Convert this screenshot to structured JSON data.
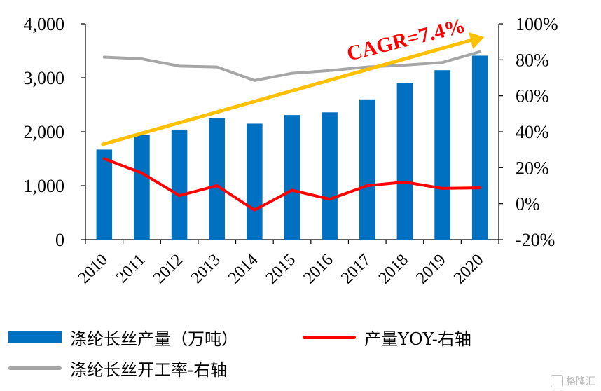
{
  "chart_data": {
    "type": "bar",
    "categories": [
      "2010",
      "2011",
      "2012",
      "2013",
      "2014",
      "2015",
      "2016",
      "2017",
      "2018",
      "2019",
      "2020"
    ],
    "series": [
      {
        "name": "涤纶长丝产量（万吨）",
        "type": "bar",
        "axis": "left",
        "color": "#0070c0",
        "values": [
          1670,
          1940,
          2040,
          2250,
          2150,
          2310,
          2360,
          2600,
          2900,
          3140,
          3410
        ]
      },
      {
        "name": "产量YOY-右轴",
        "type": "line",
        "axis": "right",
        "color": "#ff0000",
        "values": [
          25,
          17,
          4.5,
          10,
          -3.5,
          7.5,
          2.5,
          10,
          12,
          8.5,
          8.8
        ]
      },
      {
        "name": "涤纶长丝开工率-右轴",
        "type": "line",
        "axis": "right",
        "color": "#a6a6a6",
        "values": [
          81.5,
          80.5,
          76.5,
          76,
          68.5,
          72.5,
          74,
          76,
          77,
          78.5,
          84.5
        ]
      }
    ],
    "ylim_left": [
      0,
      4000
    ],
    "yticks_left": [
      "0",
      "1,000",
      "2,000",
      "3,000",
      "4,000"
    ],
    "ylim_right": [
      -20,
      100
    ],
    "yticks_right": [
      "-20%",
      "0%",
      "20%",
      "40%",
      "60%",
      "80%",
      "100%"
    ],
    "annotation": {
      "text": "CAGR=7.4%",
      "color": "#ff0000",
      "arrow_color": "#ffc000"
    },
    "grid": false,
    "legend_position": "bottom"
  },
  "legend": [
    {
      "label": "涤纶长丝产量（万吨）",
      "swatch": "bar",
      "color": "#0070c0"
    },
    {
      "label": "产量YOY-右轴",
      "swatch": "line",
      "color": "#ff0000"
    },
    {
      "label": "涤纶长丝开工率-右轴",
      "swatch": "line",
      "color": "#a6a6a6"
    }
  ],
  "watermark": {
    "text": "格隆汇"
  }
}
